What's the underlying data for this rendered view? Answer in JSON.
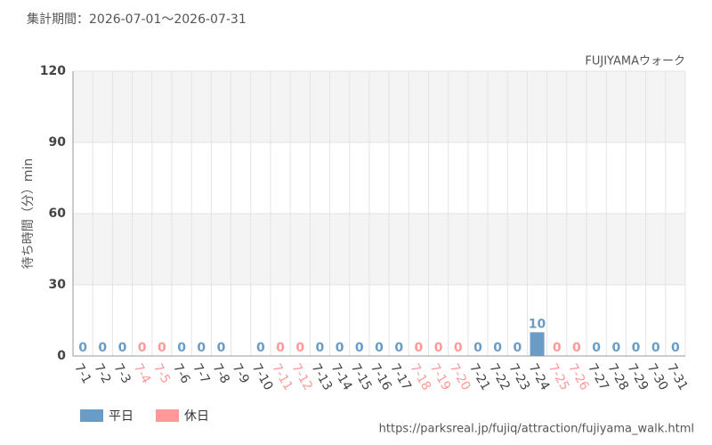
{
  "chart_data": {
    "type": "bar",
    "title": "集計期間：2026-07-01～2026-07-31",
    "subtitle": "FUJIYAMAウォーク",
    "y_label": "待ち時間（分）min",
    "source": "https://parksreal.jp/fujiq/attraction/fujiyama_walk.html",
    "categories": [
      "7-1",
      "7-2",
      "7-3",
      "7-4",
      "7-5",
      "7-6",
      "7-7",
      "7-8",
      "7-9",
      "7-10",
      "7-11",
      "7-12",
      "7-13",
      "7-14",
      "7-15",
      "7-16",
      "7-17",
      "7-18",
      "7-19",
      "7-20",
      "7-21",
      "7-22",
      "7-23",
      "7-24",
      "7-25",
      "7-26",
      "7-27",
      "7-28",
      "7-29",
      "7-30",
      "7-31"
    ],
    "series": [
      {
        "name": "平日",
        "color": "#6a9cc6",
        "values": [
          0,
          0,
          0,
          null,
          null,
          0,
          0,
          0,
          null,
          0,
          null,
          null,
          0,
          0,
          0,
          0,
          0,
          null,
          null,
          null,
          0,
          0,
          0,
          10,
          null,
          null,
          0,
          0,
          0,
          0,
          0
        ]
      },
      {
        "name": "休日",
        "color": "#ff9999",
        "values": [
          null,
          null,
          null,
          0,
          0,
          null,
          null,
          null,
          null,
          null,
          0,
          0,
          null,
          null,
          null,
          null,
          null,
          0,
          0,
          0,
          null,
          null,
          null,
          null,
          0,
          0,
          null,
          null,
          null,
          null,
          null
        ]
      }
    ],
    "ylim": [
      0,
      120
    ],
    "yticks": [
      0,
      30,
      60,
      90,
      120
    ],
    "grid": true,
    "legend": "bottom-left"
  }
}
